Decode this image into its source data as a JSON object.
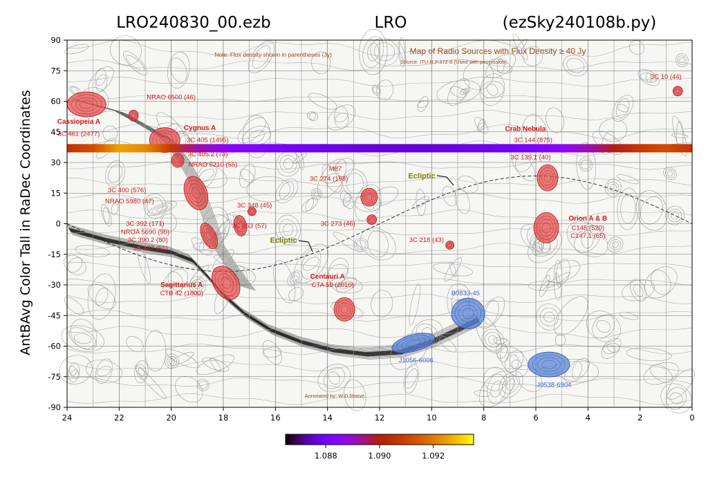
{
  "chart_data": {
    "type": "heatmap",
    "title_left": "LRO240830_00.ezb",
    "title_center": "LRO",
    "title_right": "(ezSky240108b.py)",
    "ylabel": "AntBAvg Color Tall in RaDec Coordinates",
    "xlabel": "",
    "xlim": [
      24,
      0
    ],
    "ylim": [
      -90,
      90
    ],
    "x_ticks": [
      "24",
      "22",
      "20",
      "18",
      "16",
      "14",
      "12",
      "10",
      "8",
      "6",
      "4",
      "2",
      "0"
    ],
    "y_ticks": [
      "90",
      "75",
      "60",
      "45",
      "30",
      "15",
      "0",
      "-15",
      "-30",
      "-45",
      "-60",
      "-75",
      "-90"
    ],
    "strip_dec": 37,
    "strip_colormap": "gnuplot",
    "strip_values": [
      1.0905,
      1.0912,
      1.0925,
      1.0922,
      1.0907,
      1.0892,
      1.0885,
      1.0883,
      1.0881,
      1.0879,
      1.0878,
      1.0877,
      1.0876,
      1.0876,
      1.0876,
      1.0877,
      1.0878,
      1.0879,
      1.0882,
      1.0886,
      1.0891,
      1.0899,
      1.0907,
      1.0912,
      1.0905
    ],
    "colorbar": {
      "min": 1.0865,
      "max": 1.0935,
      "ticks": [
        "1.088",
        "1.090",
        "1.092"
      ],
      "tick_values": [
        1.088,
        1.09,
        1.092
      ]
    },
    "background_map": {
      "title": "Map of Radio Sources with Flux Density ≥ 40 Jy",
      "source": "Source: ITU-R P.372-8 (Used with permission)",
      "note": "Note: Flux density shown in parentheses (Jy)",
      "annotated_by": "Annotated by: W.D.Reeve",
      "ecliptic_label": "Ecliptic",
      "red_labels": [
        {
          "text": "Cassiopeia A",
          "bold": true,
          "ra": 23.55,
          "dec": 49
        },
        {
          "text": "3C 461 (2477)",
          "bold": false,
          "ra": 23.55,
          "dec": 43
        },
        {
          "text": "NRAO 6500 (46)",
          "bold": false,
          "ra": 20.0,
          "dec": 61
        },
        {
          "text": "Cygnus A",
          "bold": true,
          "ra": 18.9,
          "dec": 46
        },
        {
          "text": "3C 405 (1495)",
          "bold": false,
          "ra": 18.6,
          "dec": 40
        },
        {
          "text": "3C 405.2 (73)",
          "bold": false,
          "ra": 18.6,
          "dec": 33
        },
        {
          "text": "NRAO 6210 (55)",
          "bold": false,
          "ra": 18.4,
          "dec": 28
        },
        {
          "text": "3C 400 (576)",
          "bold": false,
          "ra": 21.7,
          "dec": 15.5
        },
        {
          "text": "NRAO 5980 (47)",
          "bold": false,
          "ra": 21.6,
          "dec": 10
        },
        {
          "text": "3C 348 (45)",
          "bold": false,
          "ra": 16.8,
          "dec": 8
        },
        {
          "text": "3C 353 (57)",
          "bold": false,
          "ra": 17.0,
          "dec": -2
        },
        {
          "text": "3C 392 (171)",
          "bold": false,
          "ra": 21.0,
          "dec": -1
        },
        {
          "text": "NROA 5690 (90)",
          "bold": false,
          "ra": 21.0,
          "dec": -5
        },
        {
          "text": "3C 390.2 (80)",
          "bold": false,
          "ra": 20.9,
          "dec": -9
        },
        {
          "text": "3C 387 (51)",
          "bold": false,
          "ra": 20.8,
          "dec": -13
        },
        {
          "text": "M87",
          "bold": false,
          "ra": 13.7,
          "dec": 26
        },
        {
          "text": "3C 274 (198)",
          "bold": false,
          "ra": 13.95,
          "dec": 21
        },
        {
          "text": "3C 273 (46)",
          "bold": false,
          "ra": 13.6,
          "dec": -1
        },
        {
          "text": "3C 218 (43)",
          "bold": false,
          "ra": 10.2,
          "dec": -9
        },
        {
          "text": "Sagittarius A",
          "bold": true,
          "ra": 19.6,
          "dec": -31
        },
        {
          "text": "CTB 42 (1800)",
          "bold": false,
          "ra": 19.6,
          "dec": -35
        },
        {
          "text": "Centauri A",
          "bold": true,
          "ra": 14.0,
          "dec": -27
        },
        {
          "text": "CTA 59 (2010)",
          "bold": false,
          "ra": 13.8,
          "dec": -31
        },
        {
          "text": "Crab Nebula",
          "bold": true,
          "ra": 6.4,
          "dec": 45.5
        },
        {
          "text": "3C 144 (875)",
          "bold": false,
          "ra": 6.1,
          "dec": 40
        },
        {
          "text": "3C 139.1 (40)",
          "bold": false,
          "ra": 6.2,
          "dec": 31.5
        },
        {
          "text": "Orion A & B",
          "bold": true,
          "ra": 4.0,
          "dec": 1.5
        },
        {
          "text": "C145 (520)",
          "bold": false,
          "ra": 4.0,
          "dec": -3
        },
        {
          "text": "C147.1 (65)",
          "bold": false,
          "ra": 4.0,
          "dec": -7
        },
        {
          "text": "3C 10 (44)",
          "bold": false,
          "ra": 1.0,
          "dec": 71
        }
      ],
      "blue_labels": [
        {
          "text": "B0833-45",
          "ra": 8.7,
          "dec": -35
        },
        {
          "text": "J1056-6006",
          "ra": 10.6,
          "dec": -68
        },
        {
          "text": "J0538-6904",
          "ra": 5.3,
          "dec": -80
        }
      ]
    }
  }
}
